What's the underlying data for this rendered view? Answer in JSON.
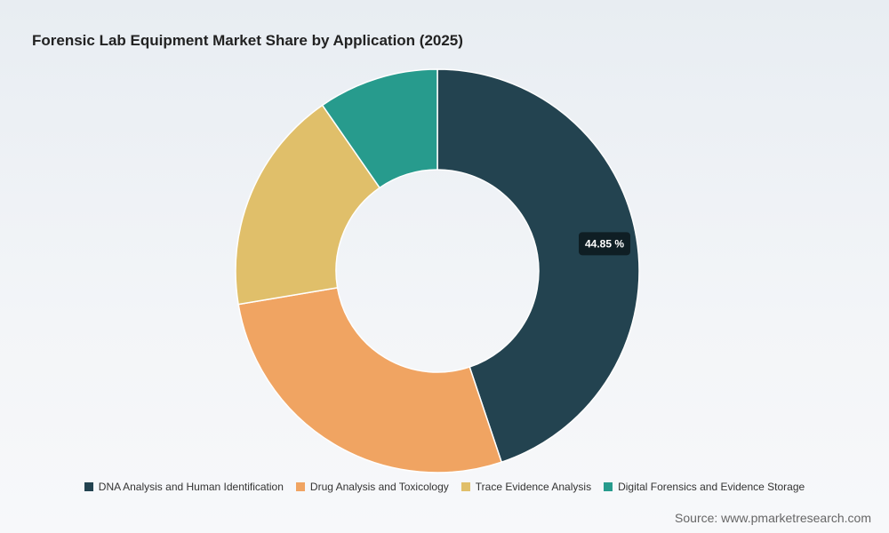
{
  "title": "Forensic Lab Equipment Market Share by Application (2025)",
  "source": "Source: www.pmarketresearch.com",
  "chart_data": {
    "type": "pie",
    "donut": true,
    "title": "Forensic Lab Equipment Market Share by Application (2025)",
    "categories": [
      "DNA Analysis and Human Identification",
      "Drug Analysis and Toxicology",
      "Trace Evidence Analysis",
      "Digital Forensics and Evidence Storage"
    ],
    "values": [
      44.85,
      27.5,
      18.0,
      9.65
    ],
    "colors": [
      "#234350",
      "#f0a462",
      "#e0bf6a",
      "#279b8d"
    ],
    "data_labels": [
      "44.85 %",
      "",
      "",
      ""
    ],
    "legend_position": "bottom"
  }
}
